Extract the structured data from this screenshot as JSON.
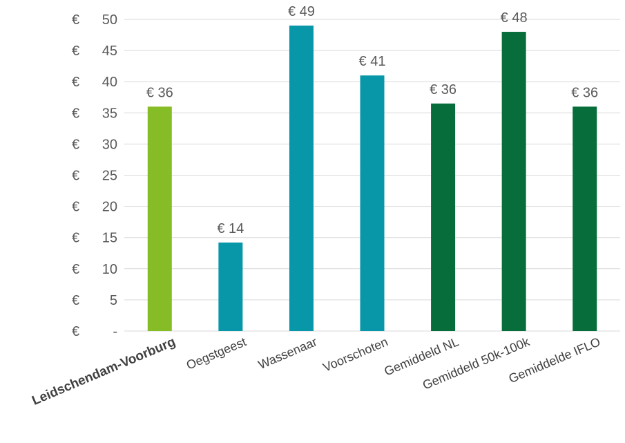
{
  "chart_data": {
    "type": "bar",
    "title": "",
    "xlabel": "",
    "ylabel": "",
    "ylim": [
      0,
      50
    ],
    "ytick_step": 5,
    "ytick_labels": [
      "€ -",
      "€ 5",
      "€ 10",
      "€ 15",
      "€ 20",
      "€ 25",
      "€ 30",
      "€ 35",
      "€ 40",
      "€ 45",
      "€ 50"
    ],
    "grid": true,
    "legend": "none",
    "categories": [
      "Leidschendam-Voorburg",
      "Oegstgeest",
      "Wassenaar",
      "Voorschoten",
      "Gemiddeld NL",
      "Gemiddeld 50k-100k",
      "Gemiddelde IFLO"
    ],
    "values": [
      36,
      14.2,
      49,
      41,
      36.5,
      48,
      36
    ],
    "data_labels": [
      "€ 36",
      "€ 14",
      "€ 49",
      "€ 41",
      "€ 36",
      "€ 48",
      "€ 36"
    ],
    "colors": [
      "#86bc25",
      "#0897a9",
      "#0897a9",
      "#0897a9",
      "#076e3b",
      "#076e3b",
      "#076e3b"
    ],
    "highlight_category_color": "#86bc25",
    "highlight_index": 0
  }
}
